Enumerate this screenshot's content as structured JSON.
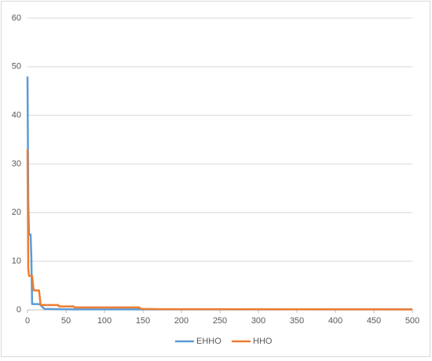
{
  "chart_data": {
    "type": "line",
    "x": [
      0,
      1,
      2,
      4,
      5,
      6,
      8,
      15,
      17,
      18,
      22,
      40,
      41,
      60,
      61,
      145,
      148,
      175,
      500
    ],
    "series": [
      {
        "name": "EHHO",
        "color": "#5b9bd5",
        "values": [
          48,
          22,
          15.5,
          15.5,
          11,
          1.2,
          1.2,
          1.2,
          1.0,
          0.8,
          0.2,
          0.15,
          0.15,
          0.1,
          0.1,
          0.1,
          0.1,
          0.1,
          0.1
        ]
      },
      {
        "name": "HHO",
        "color": "#ed7d31",
        "values": [
          33,
          8.5,
          7,
          7,
          7,
          7,
          4,
          4,
          1,
          1,
          1,
          1,
          0.7,
          0.7,
          0.5,
          0.5,
          0.2,
          0.15,
          0.1
        ]
      }
    ],
    "xlim": [
      0,
      500
    ],
    "xticks": [
      0,
      50,
      100,
      150,
      200,
      250,
      300,
      350,
      400,
      450,
      500
    ],
    "ylim": [
      0,
      60
    ],
    "yticks": [
      0,
      10,
      20,
      30,
      40,
      50,
      60
    ],
    "grid": true,
    "legend": "bottom"
  }
}
